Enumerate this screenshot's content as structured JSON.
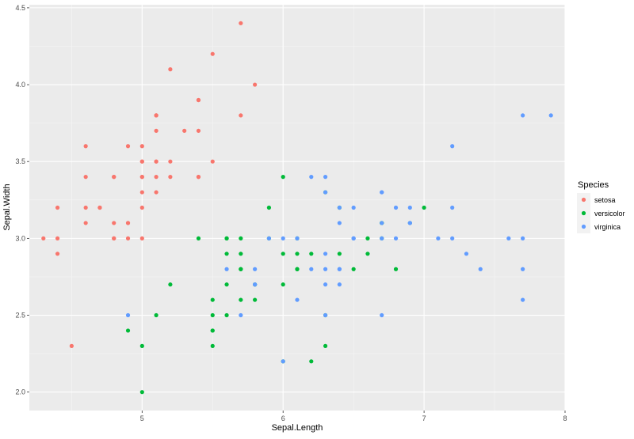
{
  "chart_data": {
    "type": "scatter",
    "xlabel": "Sepal.Length",
    "ylabel": "Sepal.Width",
    "xlim": [
      4.2,
      8.0
    ],
    "ylim": [
      1.88,
      4.52
    ],
    "x_ticks": [
      5,
      6,
      7,
      8
    ],
    "y_ticks": [
      2.0,
      2.5,
      3.0,
      3.5,
      4.0,
      4.5
    ],
    "x_tick_labels": [
      "5",
      "6",
      "7",
      "8"
    ],
    "y_tick_labels": [
      "2.0",
      "2.5",
      "3.0",
      "3.5",
      "4.0",
      "4.5"
    ],
    "grid": true,
    "legend": {
      "title": "Species",
      "position": "right"
    },
    "panel_background": "#ebebeb",
    "series": [
      {
        "name": "setosa",
        "color": "#F8766D",
        "points": [
          [
            5.1,
            3.5
          ],
          [
            4.9,
            3.0
          ],
          [
            4.7,
            3.2
          ],
          [
            4.6,
            3.1
          ],
          [
            5.0,
            3.6
          ],
          [
            5.4,
            3.9
          ],
          [
            4.6,
            3.4
          ],
          [
            5.0,
            3.4
          ],
          [
            4.4,
            2.9
          ],
          [
            4.9,
            3.1
          ],
          [
            5.4,
            3.7
          ],
          [
            4.8,
            3.4
          ],
          [
            4.8,
            3.0
          ],
          [
            4.3,
            3.0
          ],
          [
            5.8,
            4.0
          ],
          [
            5.7,
            4.4
          ],
          [
            5.4,
            3.9
          ],
          [
            5.1,
            3.5
          ],
          [
            5.7,
            3.8
          ],
          [
            5.1,
            3.8
          ],
          [
            5.4,
            3.4
          ],
          [
            5.1,
            3.7
          ],
          [
            4.6,
            3.6
          ],
          [
            5.1,
            3.3
          ],
          [
            4.8,
            3.4
          ],
          [
            5.0,
            3.0
          ],
          [
            5.0,
            3.4
          ],
          [
            5.2,
            3.5
          ],
          [
            5.2,
            3.4
          ],
          [
            4.7,
            3.2
          ],
          [
            4.8,
            3.1
          ],
          [
            5.4,
            3.4
          ],
          [
            5.2,
            4.1
          ],
          [
            5.5,
            4.2
          ],
          [
            4.9,
            3.1
          ],
          [
            5.0,
            3.2
          ],
          [
            5.5,
            3.5
          ],
          [
            4.9,
            3.6
          ],
          [
            4.4,
            3.0
          ],
          [
            5.1,
            3.4
          ],
          [
            5.0,
            3.5
          ],
          [
            4.5,
            2.3
          ],
          [
            4.4,
            3.2
          ],
          [
            5.0,
            3.5
          ],
          [
            5.1,
            3.8
          ],
          [
            4.8,
            3.0
          ],
          [
            5.1,
            3.8
          ],
          [
            4.6,
            3.2
          ],
          [
            5.3,
            3.7
          ],
          [
            5.0,
            3.3
          ]
        ]
      },
      {
        "name": "versicolor",
        "color": "#00BA38",
        "points": [
          [
            7.0,
            3.2
          ],
          [
            6.4,
            3.2
          ],
          [
            6.9,
            3.1
          ],
          [
            5.5,
            2.3
          ],
          [
            6.5,
            2.8
          ],
          [
            5.7,
            2.8
          ],
          [
            6.3,
            3.3
          ],
          [
            4.9,
            2.4
          ],
          [
            6.6,
            2.9
          ],
          [
            5.2,
            2.7
          ],
          [
            5.0,
            2.0
          ],
          [
            5.9,
            3.0
          ],
          [
            6.0,
            2.2
          ],
          [
            6.1,
            2.9
          ],
          [
            5.6,
            2.9
          ],
          [
            6.7,
            3.1
          ],
          [
            5.6,
            3.0
          ],
          [
            5.8,
            2.7
          ],
          [
            6.2,
            2.2
          ],
          [
            5.6,
            2.5
          ],
          [
            5.9,
            3.2
          ],
          [
            6.1,
            2.8
          ],
          [
            6.3,
            2.5
          ],
          [
            6.1,
            2.8
          ],
          [
            6.4,
            2.9
          ],
          [
            6.6,
            3.0
          ],
          [
            6.8,
            2.8
          ],
          [
            6.7,
            3.0
          ],
          [
            6.0,
            2.9
          ],
          [
            5.7,
            2.6
          ],
          [
            5.5,
            2.4
          ],
          [
            5.5,
            2.4
          ],
          [
            5.8,
            2.7
          ],
          [
            6.0,
            2.7
          ],
          [
            5.4,
            3.0
          ],
          [
            6.0,
            3.4
          ],
          [
            6.7,
            3.1
          ],
          [
            6.3,
            2.3
          ],
          [
            5.6,
            3.0
          ],
          [
            5.5,
            2.5
          ],
          [
            5.5,
            2.6
          ],
          [
            6.1,
            3.0
          ],
          [
            5.8,
            2.6
          ],
          [
            5.0,
            2.3
          ],
          [
            5.6,
            2.7
          ],
          [
            5.7,
            3.0
          ],
          [
            5.7,
            2.9
          ],
          [
            6.2,
            2.9
          ],
          [
            5.1,
            2.5
          ],
          [
            5.7,
            2.8
          ]
        ]
      },
      {
        "name": "virginica",
        "color": "#619CFF",
        "points": [
          [
            6.3,
            3.3
          ],
          [
            5.8,
            2.7
          ],
          [
            7.1,
            3.0
          ],
          [
            6.3,
            2.9
          ],
          [
            6.5,
            3.0
          ],
          [
            7.6,
            3.0
          ],
          [
            4.9,
            2.5
          ],
          [
            7.3,
            2.9
          ],
          [
            6.7,
            2.5
          ],
          [
            7.2,
            3.6
          ],
          [
            6.5,
            3.2
          ],
          [
            6.4,
            2.7
          ],
          [
            6.8,
            3.0
          ],
          [
            5.7,
            2.5
          ],
          [
            5.8,
            2.8
          ],
          [
            6.4,
            3.2
          ],
          [
            6.5,
            3.0
          ],
          [
            7.7,
            3.8
          ],
          [
            7.7,
            2.6
          ],
          [
            6.0,
            2.2
          ],
          [
            6.9,
            3.2
          ],
          [
            5.6,
            2.8
          ],
          [
            7.7,
            2.8
          ],
          [
            6.3,
            2.7
          ],
          [
            6.7,
            3.3
          ],
          [
            7.2,
            3.2
          ],
          [
            6.2,
            2.8
          ],
          [
            6.1,
            3.0
          ],
          [
            6.4,
            2.8
          ],
          [
            7.2,
            3.0
          ],
          [
            7.4,
            2.8
          ],
          [
            7.9,
            3.8
          ],
          [
            6.4,
            2.8
          ],
          [
            6.3,
            2.8
          ],
          [
            6.1,
            2.6
          ],
          [
            7.7,
            3.0
          ],
          [
            6.3,
            3.4
          ],
          [
            6.4,
            3.1
          ],
          [
            6.0,
            3.0
          ],
          [
            6.9,
            3.1
          ],
          [
            6.7,
            3.1
          ],
          [
            6.9,
            3.1
          ],
          [
            5.8,
            2.7
          ],
          [
            6.8,
            3.2
          ],
          [
            6.7,
            3.3
          ],
          [
            6.7,
            3.0
          ],
          [
            6.3,
            2.5
          ],
          [
            6.5,
            3.0
          ],
          [
            6.2,
            3.4
          ],
          [
            5.9,
            3.0
          ]
        ]
      }
    ]
  }
}
